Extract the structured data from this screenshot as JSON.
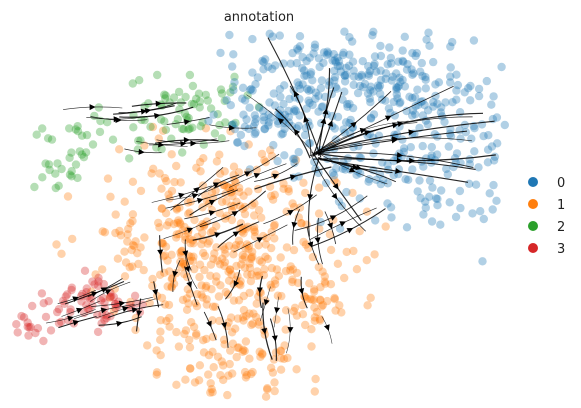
{
  "chart_data": {
    "type": "scatter",
    "title": "annotation",
    "xlabel": "",
    "ylabel": "",
    "grid": false,
    "axes_visible": false,
    "overlay": "velocity-streamlines",
    "legend_placement": "right",
    "series": [
      {
        "name": "0",
        "color": "#1f77b4",
        "region": "upper-right",
        "approx_points": 520
      },
      {
        "name": "1",
        "color": "#ff7f0e",
        "region": "center-bottom",
        "approx_points": 560
      },
      {
        "name": "2",
        "color": "#2ca02c",
        "region": "upper-left",
        "approx_points": 110
      },
      {
        "name": "3",
        "color": "#d62728",
        "region": "lower-left",
        "approx_points": 80
      }
    ]
  }
}
